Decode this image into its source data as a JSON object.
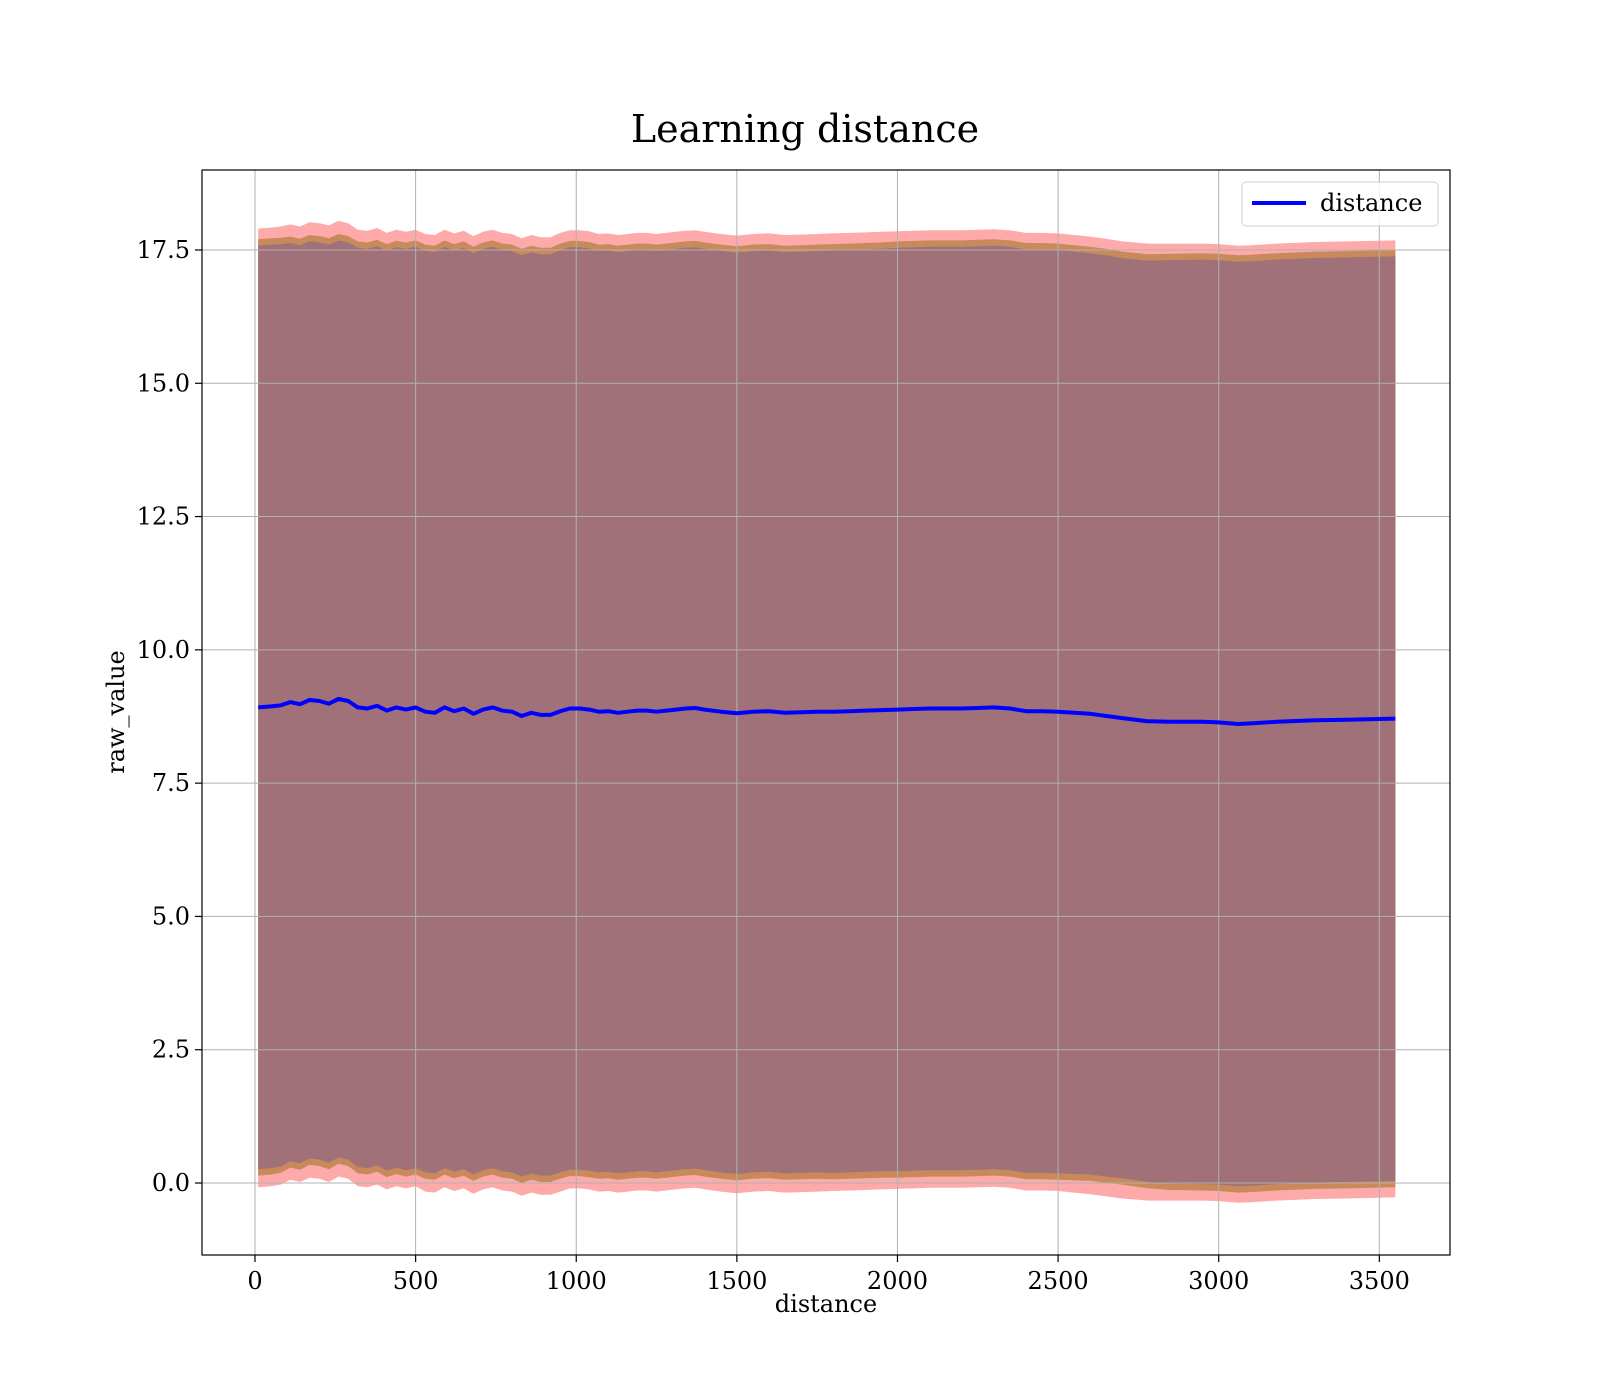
{
  "chart_data": {
    "type": "line",
    "title": "Learning distance",
    "xlabel": "distance",
    "ylabel": "raw_value",
    "xlim": [
      -165,
      3720
    ],
    "ylim": [
      -1.35,
      19.0
    ],
    "xticks": [
      0,
      500,
      1000,
      1500,
      2000,
      2500,
      3000,
      3500
    ],
    "xtick_labels": [
      "0",
      "500",
      "1000",
      "1500",
      "2000",
      "2500",
      "3000",
      "3500"
    ],
    "yticks": [
      0.0,
      2.5,
      5.0,
      7.5,
      10.0,
      12.5,
      15.0,
      17.5
    ],
    "ytick_labels": [
      "0.0",
      "2.5",
      "5.0",
      "7.5",
      "10.0",
      "12.5",
      "15.0",
      "17.5"
    ],
    "grid": true,
    "legend_position": "top-right",
    "series": [
      {
        "name": "distance",
        "color": "#0000ff",
        "x": [
          10,
          50,
          80,
          110,
          140,
          170,
          200,
          230,
          260,
          290,
          320,
          350,
          380,
          410,
          440,
          470,
          500,
          530,
          560,
          590,
          620,
          650,
          680,
          710,
          740,
          770,
          800,
          830,
          860,
          890,
          920,
          950,
          980,
          1010,
          1040,
          1070,
          1100,
          1130,
          1160,
          1190,
          1220,
          1250,
          1280,
          1310,
          1340,
          1370,
          1400,
          1450,
          1500,
          1550,
          1600,
          1650,
          1700,
          1750,
          1800,
          1850,
          1900,
          1950,
          2000,
          2050,
          2100,
          2150,
          2200,
          2250,
          2300,
          2350,
          2400,
          2450,
          2500,
          2550,
          2600,
          2650,
          2700,
          2780,
          2850,
          2950,
          3000,
          3060,
          3100,
          3180,
          3300,
          3400,
          3550
        ],
        "values": [
          8.92,
          8.94,
          8.96,
          9.02,
          8.98,
          9.06,
          9.04,
          8.99,
          9.08,
          9.04,
          8.92,
          8.9,
          8.95,
          8.86,
          8.92,
          8.88,
          8.92,
          8.84,
          8.82,
          8.92,
          8.85,
          8.9,
          8.8,
          8.88,
          8.92,
          8.86,
          8.84,
          8.76,
          8.82,
          8.78,
          8.78,
          8.85,
          8.9,
          8.9,
          8.88,
          8.84,
          8.85,
          8.82,
          8.84,
          8.86,
          8.86,
          8.84,
          8.86,
          8.88,
          8.9,
          8.91,
          8.88,
          8.84,
          8.81,
          8.84,
          8.85,
          8.82,
          8.83,
          8.84,
          8.84,
          8.85,
          8.86,
          8.87,
          8.88,
          8.89,
          8.9,
          8.9,
          8.9,
          8.91,
          8.92,
          8.9,
          8.85,
          8.85,
          8.84,
          8.82,
          8.8,
          8.76,
          8.72,
          8.66,
          8.65,
          8.65,
          8.64,
          8.61,
          8.62,
          8.65,
          8.68,
          8.69,
          8.71
        ],
        "band_inner_upper": [
          17.7,
          17.72,
          17.73,
          17.75,
          17.71,
          17.78,
          17.76,
          17.72,
          17.8,
          17.76,
          17.66,
          17.64,
          17.69,
          17.61,
          17.67,
          17.64,
          17.68,
          17.6,
          17.58,
          17.68,
          17.61,
          17.66,
          17.56,
          17.64,
          17.68,
          17.62,
          17.6,
          17.52,
          17.58,
          17.54,
          17.54,
          17.62,
          17.67,
          17.67,
          17.65,
          17.6,
          17.61,
          17.58,
          17.6,
          17.62,
          17.62,
          17.6,
          17.62,
          17.64,
          17.66,
          17.67,
          17.64,
          17.6,
          17.57,
          17.6,
          17.61,
          17.58,
          17.59,
          17.6,
          17.61,
          17.62,
          17.63,
          17.64,
          17.66,
          17.67,
          17.68,
          17.68,
          17.68,
          17.69,
          17.7,
          17.68,
          17.63,
          17.63,
          17.62,
          17.59,
          17.56,
          17.52,
          17.47,
          17.42,
          17.43,
          17.44,
          17.43,
          17.4,
          17.41,
          17.44,
          17.47,
          17.48,
          17.5
        ],
        "band_inner_lower": [
          0.14,
          0.16,
          0.19,
          0.29,
          0.25,
          0.34,
          0.32,
          0.26,
          0.36,
          0.32,
          0.18,
          0.16,
          0.21,
          0.11,
          0.17,
          0.12,
          0.16,
          0.08,
          0.06,
          0.16,
          0.09,
          0.14,
          0.04,
          0.12,
          0.16,
          0.1,
          0.08,
          0.0,
          0.06,
          0.02,
          0.02,
          0.08,
          0.13,
          0.13,
          0.11,
          0.08,
          0.09,
          0.06,
          0.08,
          0.1,
          0.1,
          0.08,
          0.1,
          0.12,
          0.14,
          0.15,
          0.12,
          0.08,
          0.05,
          0.08,
          0.09,
          0.06,
          0.07,
          0.08,
          0.07,
          0.08,
          0.09,
          0.1,
          0.1,
          0.11,
          0.12,
          0.12,
          0.12,
          0.13,
          0.14,
          0.12,
          0.07,
          0.07,
          0.06,
          0.05,
          0.04,
          0.0,
          -0.03,
          -0.1,
          -0.13,
          -0.14,
          -0.15,
          -0.18,
          -0.17,
          -0.14,
          -0.11,
          -0.1,
          -0.08
        ],
        "band_outer_upper": [
          17.9,
          17.92,
          17.94,
          17.98,
          17.94,
          18.02,
          18.0,
          17.96,
          18.05,
          18.0,
          17.88,
          17.86,
          17.91,
          17.82,
          17.88,
          17.84,
          17.88,
          17.8,
          17.78,
          17.88,
          17.81,
          17.86,
          17.76,
          17.84,
          17.88,
          17.82,
          17.8,
          17.72,
          17.78,
          17.74,
          17.74,
          17.82,
          17.87,
          17.87,
          17.85,
          17.8,
          17.81,
          17.78,
          17.8,
          17.82,
          17.82,
          17.8,
          17.82,
          17.84,
          17.86,
          17.87,
          17.84,
          17.8,
          17.77,
          17.8,
          17.81,
          17.78,
          17.79,
          17.8,
          17.81,
          17.82,
          17.83,
          17.84,
          17.85,
          17.86,
          17.87,
          17.87,
          17.87,
          17.88,
          17.89,
          17.87,
          17.82,
          17.82,
          17.81,
          17.78,
          17.75,
          17.71,
          17.66,
          17.62,
          17.62,
          17.62,
          17.61,
          17.58,
          17.59,
          17.62,
          17.65,
          17.66,
          17.68
        ],
        "band_outer_lower": [
          -0.08,
          -0.06,
          -0.03,
          0.06,
          0.02,
          0.1,
          0.08,
          0.02,
          0.12,
          0.08,
          -0.06,
          -0.08,
          -0.03,
          -0.12,
          -0.06,
          -0.1,
          -0.06,
          -0.16,
          -0.18,
          -0.08,
          -0.15,
          -0.1,
          -0.2,
          -0.12,
          -0.08,
          -0.14,
          -0.16,
          -0.24,
          -0.18,
          -0.22,
          -0.22,
          -0.16,
          -0.1,
          -0.1,
          -0.12,
          -0.16,
          -0.15,
          -0.18,
          -0.16,
          -0.14,
          -0.14,
          -0.16,
          -0.14,
          -0.12,
          -0.1,
          -0.09,
          -0.12,
          -0.16,
          -0.19,
          -0.16,
          -0.15,
          -0.18,
          -0.17,
          -0.16,
          -0.15,
          -0.14,
          -0.13,
          -0.12,
          -0.11,
          -0.1,
          -0.09,
          -0.09,
          -0.09,
          -0.08,
          -0.07,
          -0.09,
          -0.14,
          -0.14,
          -0.15,
          -0.18,
          -0.21,
          -0.25,
          -0.29,
          -0.33,
          -0.33,
          -0.33,
          -0.34,
          -0.37,
          -0.36,
          -0.33,
          -0.3,
          -0.29,
          -0.27
        ]
      }
    ],
    "colors": {
      "line": "#0000ff",
      "band_main": "#a1717a",
      "band_inner": "#c88a5a",
      "band_outer": "#ffaaaa",
      "grid": "#b0b0b0",
      "axes": "#000000"
    },
    "legend": {
      "entries": [
        {
          "label": "distance",
          "color": "#0000ff"
        }
      ]
    }
  }
}
